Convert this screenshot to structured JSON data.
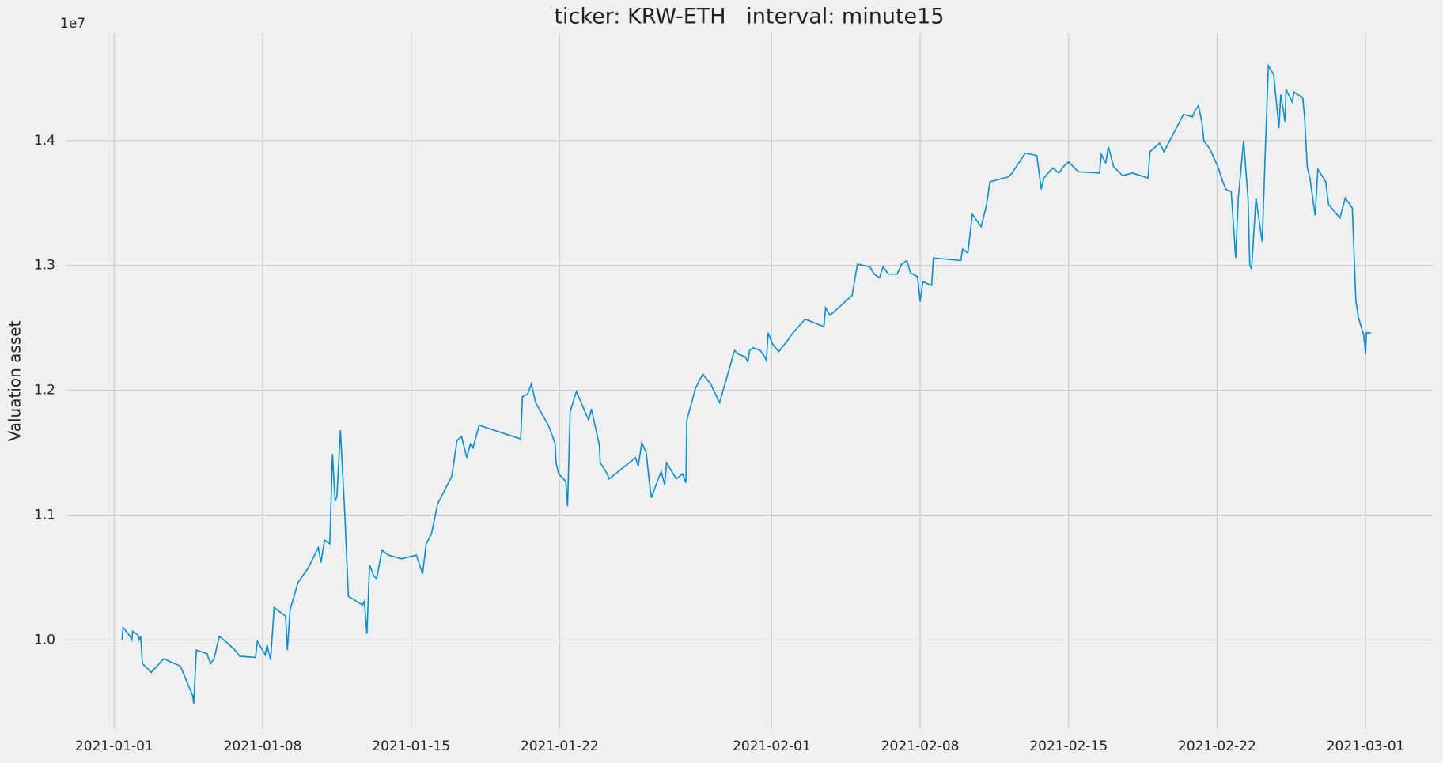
{
  "chart_data": {
    "type": "line",
    "title": "ticker: KRW-ETH   interval: minute15",
    "ylabel": "Valuation asset",
    "y_offset_label": "1e7",
    "color": "#008fd5",
    "grid": true,
    "xlim": [
      "2020-12-29T18:00",
      "2021-03-04T04:00"
    ],
    "xticks": [
      "2021-01-01",
      "2021-01-08",
      "2021-01-15",
      "2021-01-22",
      "2021-02-01",
      "2021-02-08",
      "2021-02-15",
      "2021-02-22",
      "2021-03-01"
    ],
    "ylim": [
      9287000,
      14860000
    ],
    "yticks": [
      {
        "value": 10000000,
        "label": "1.0"
      },
      {
        "value": 11000000,
        "label": "1.1"
      },
      {
        "value": 12000000,
        "label": "1.2"
      },
      {
        "value": 13000000,
        "label": "1.3"
      },
      {
        "value": 14000000,
        "label": "1.4"
      }
    ],
    "x": [
      "2021-01-01T09:00",
      "2021-01-01T10:00",
      "2021-01-01T17:00",
      "2021-01-01T20:00",
      "2021-01-01T21:00",
      "2021-01-02T03:00",
      "2021-01-02T04:00",
      "2021-01-02T06:00",
      "2021-01-02T08:00",
      "2021-01-02T18:00",
      "2021-01-03T08:00",
      "2021-01-04T03:00",
      "2021-01-04T17:00",
      "2021-01-04T18:00",
      "2021-01-04T21:00",
      "2021-01-05T09:00",
      "2021-01-05T13:00",
      "2021-01-05T17:00",
      "2021-01-05T23:00",
      "2021-01-06T09:00",
      "2021-01-06T18:00",
      "2021-01-06T22:00",
      "2021-01-07T16:00",
      "2021-01-07T18:00",
      "2021-01-08T03:00",
      "2021-01-08T05:00",
      "2021-01-08T09:00",
      "2021-01-08T13:00",
      "2021-01-09T02:00",
      "2021-01-09T04:00",
      "2021-01-09T07:00",
      "2021-01-09T16:00",
      "2021-01-10T03:00",
      "2021-01-10T15:00",
      "2021-01-10T18:00",
      "2021-01-10T22:00",
      "2021-01-11T04:00",
      "2021-01-11T07:00",
      "2021-01-11T10:00",
      "2021-01-11T12:00",
      "2021-01-11T16:00",
      "2021-01-11T21:00",
      "2021-01-12T01:00",
      "2021-01-12T17:00",
      "2021-01-12T19:00",
      "2021-01-12T22:00",
      "2021-01-13T01:00",
      "2021-01-13T06:00",
      "2021-01-13T09:00",
      "2021-01-13T15:00",
      "2021-01-13T22:00",
      "2021-01-14T13:00",
      "2021-01-15T06:00",
      "2021-01-15T13:00",
      "2021-01-15T17:00",
      "2021-01-15T23:00",
      "2021-01-16T06:00",
      "2021-01-16T22:00",
      "2021-01-17T04:00",
      "2021-01-17T09:00",
      "2021-01-17T15:00",
      "2021-01-17T19:00",
      "2021-01-17T22:00",
      "2021-01-18T05:00",
      "2021-01-20T04:00",
      "2021-01-20T06:00",
      "2021-01-20T12:00",
      "2021-01-20T16:00",
      "2021-01-20T21:00",
      "2021-01-21T12:00",
      "2021-01-21T19:00",
      "2021-01-21T20:00",
      "2021-01-21T23:00",
      "2021-01-22T07:00",
      "2021-01-22T09:00",
      "2021-01-22T12:00",
      "2021-01-22T19:00",
      "2021-01-23T09:00",
      "2021-01-23T12:00",
      "2021-01-23T21:00",
      "2021-01-23T22:00",
      "2021-01-24T06:00",
      "2021-01-24T08:00",
      "2021-01-25T14:00",
      "2021-01-25T17:00",
      "2021-01-25T21:00",
      "2021-01-26T02:00",
      "2021-01-26T06:00",
      "2021-01-26T08:00",
      "2021-01-26T13:00",
      "2021-01-26T19:00",
      "2021-01-26T23:00",
      "2021-01-27T01:00",
      "2021-01-27T12:00",
      "2021-01-27T19:00",
      "2021-01-27T23:00",
      "2021-01-28T00:00",
      "2021-01-28T10:00",
      "2021-01-28T18:00",
      "2021-01-29T03:00",
      "2021-01-29T13:00",
      "2021-01-30T06:00",
      "2021-01-30T10:00",
      "2021-01-30T18:00",
      "2021-01-30T21:00",
      "2021-01-30T23:00",
      "2021-01-31T03:00",
      "2021-01-31T11:00",
      "2021-01-31T15:00",
      "2021-01-31T18:00",
      "2021-01-31T20:00",
      "2021-02-01T01:00",
      "2021-02-01T08:00",
      "2021-02-01T17:00",
      "2021-02-02T00:00",
      "2021-02-02T14:00",
      "2021-02-03T11:00",
      "2021-02-03T13:00",
      "2021-02-03T18:00",
      "2021-02-04T19:00",
      "2021-02-05T01:00",
      "2021-02-05T15:00",
      "2021-02-05T20:00",
      "2021-02-06T02:00",
      "2021-02-06T06:00",
      "2021-02-06T12:00",
      "2021-02-06T22:00",
      "2021-02-07T03:00",
      "2021-02-07T09:00",
      "2021-02-07T13:00",
      "2021-02-07T21:00",
      "2021-02-08T00:00",
      "2021-02-08T03:00",
      "2021-02-08T13:00",
      "2021-02-08T15:00",
      "2021-02-09T22:00",
      "2021-02-10T00:00",
      "2021-02-10T06:00",
      "2021-02-10T11:00",
      "2021-02-10T21:00",
      "2021-02-11T03:00",
      "2021-02-11T07:00",
      "2021-02-12T04:00",
      "2021-02-12T08:00",
      "2021-02-12T23:00",
      "2021-02-13T12:00",
      "2021-02-13T15:00",
      "2021-02-13T17:00",
      "2021-02-13T20:00",
      "2021-02-14T02:00",
      "2021-02-14T06:00",
      "2021-02-14T13:00",
      "2021-02-14T18:00",
      "2021-02-15T00:00",
      "2021-02-15T11:00",
      "2021-02-16T11:00",
      "2021-02-16T13:00",
      "2021-02-16T18:00",
      "2021-02-16T21:00",
      "2021-02-17T03:00",
      "2021-02-17T13:00",
      "2021-02-18T00:00",
      "2021-02-18T18:00",
      "2021-02-18T20:00",
      "2021-02-19T07:00",
      "2021-02-19T12:00",
      "2021-02-19T17:00",
      "2021-02-20T10:00",
      "2021-02-20T20:00",
      "2021-02-20T23:00",
      "2021-02-21T03:00",
      "2021-02-21T07:00",
      "2021-02-21T09:00",
      "2021-02-21T16:00",
      "2021-02-22T01:00",
      "2021-02-22T06:00",
      "2021-02-22T10:00",
      "2021-02-22T16:00",
      "2021-02-22T21:00",
      "2021-02-23T00:00",
      "2021-02-23T06:00",
      "2021-02-23T11:00",
      "2021-02-23T13:00",
      "2021-02-23T15:00",
      "2021-02-23T20:00",
      "2021-02-24T03:00",
      "2021-02-24T06:00",
      "2021-02-24T10:00",
      "2021-02-24T16:00",
      "2021-02-24T22:00",
      "2021-02-25T00:00",
      "2021-02-25T05:00",
      "2021-02-25T06:00",
      "2021-02-25T13:00",
      "2021-02-25T15:00",
      "2021-02-26T01:00",
      "2021-02-26T03:00",
      "2021-02-26T06:00",
      "2021-02-26T09:00",
      "2021-02-26T15:00",
      "2021-02-26T18:00",
      "2021-02-27T03:00",
      "2021-02-27T06:00",
      "2021-02-27T19:00",
      "2021-02-28T01:00",
      "2021-02-28T09:00",
      "2021-02-28T11:00",
      "2021-02-28T13:00",
      "2021-02-28T16:00",
      "2021-02-28T22:00",
      "2021-03-01T00:00",
      "2021-03-01T01:00",
      "2021-03-01T06:00"
    ],
    "values": [
      10000000,
      10100000,
      10040000,
      10000000,
      10070000,
      10040000,
      10000000,
      10030000,
      9810000,
      9740000,
      9850000,
      9790000,
      9550000,
      9490000,
      9920000,
      9890000,
      9810000,
      9850000,
      10030000,
      9970000,
      9910000,
      9870000,
      9860000,
      9990000,
      9880000,
      9960000,
      9840000,
      10260000,
      10190000,
      9920000,
      10240000,
      10460000,
      10570000,
      10740000,
      10620000,
      10800000,
      10770000,
      11490000,
      11110000,
      11150000,
      11680000,
      11000000,
      10350000,
      10280000,
      10310000,
      10050000,
      10600000,
      10510000,
      10490000,
      10720000,
      10680000,
      10650000,
      10680000,
      10530000,
      10770000,
      10850000,
      11090000,
      11310000,
      11600000,
      11630000,
      11460000,
      11570000,
      11540000,
      11720000,
      11610000,
      11950000,
      11970000,
      12050000,
      11900000,
      11710000,
      11570000,
      11420000,
      11330000,
      11270000,
      11070000,
      11830000,
      11990000,
      11760000,
      11850000,
      11560000,
      11420000,
      11330000,
      11290000,
      11460000,
      11390000,
      11580000,
      11500000,
      11240000,
      11140000,
      11240000,
      11350000,
      11240000,
      11420000,
      11290000,
      11330000,
      11260000,
      11760000,
      12020000,
      12130000,
      12050000,
      11900000,
      12320000,
      12290000,
      12270000,
      12230000,
      12320000,
      12340000,
      12320000,
      12280000,
      12240000,
      12460000,
      12370000,
      12310000,
      12390000,
      12460000,
      12570000,
      12510000,
      12660000,
      12600000,
      12760000,
      13010000,
      12990000,
      12930000,
      12900000,
      12990000,
      12930000,
      12930000,
      13010000,
      13040000,
      12940000,
      12910000,
      12710000,
      12870000,
      12840000,
      13060000,
      13040000,
      13130000,
      13100000,
      13410000,
      13310000,
      13480000,
      13670000,
      13710000,
      13740000,
      13900000,
      13880000,
      13720000,
      13610000,
      13700000,
      13750000,
      13780000,
      13740000,
      13790000,
      13830000,
      13750000,
      13740000,
      13890000,
      13820000,
      13950000,
      13790000,
      13720000,
      13740000,
      13700000,
      13910000,
      13980000,
      13910000,
      13980000,
      14210000,
      14190000,
      14240000,
      14280000,
      14140000,
      14000000,
      13930000,
      13790000,
      13680000,
      13610000,
      13590000,
      13060000,
      13540000,
      14000000,
      13540000,
      13000000,
      12970000,
      13540000,
      13190000,
      13800000,
      14600000,
      14530000,
      14100000,
      14370000,
      14150000,
      14410000,
      14310000,
      14390000,
      14340000,
      14190000,
      13790000,
      13700000,
      13400000,
      13770000,
      13670000,
      13490000,
      13380000,
      13540000,
      13460000,
      13090000,
      12720000,
      12580000,
      12440000,
      12290000,
      12460000,
      12460000
    ]
  }
}
